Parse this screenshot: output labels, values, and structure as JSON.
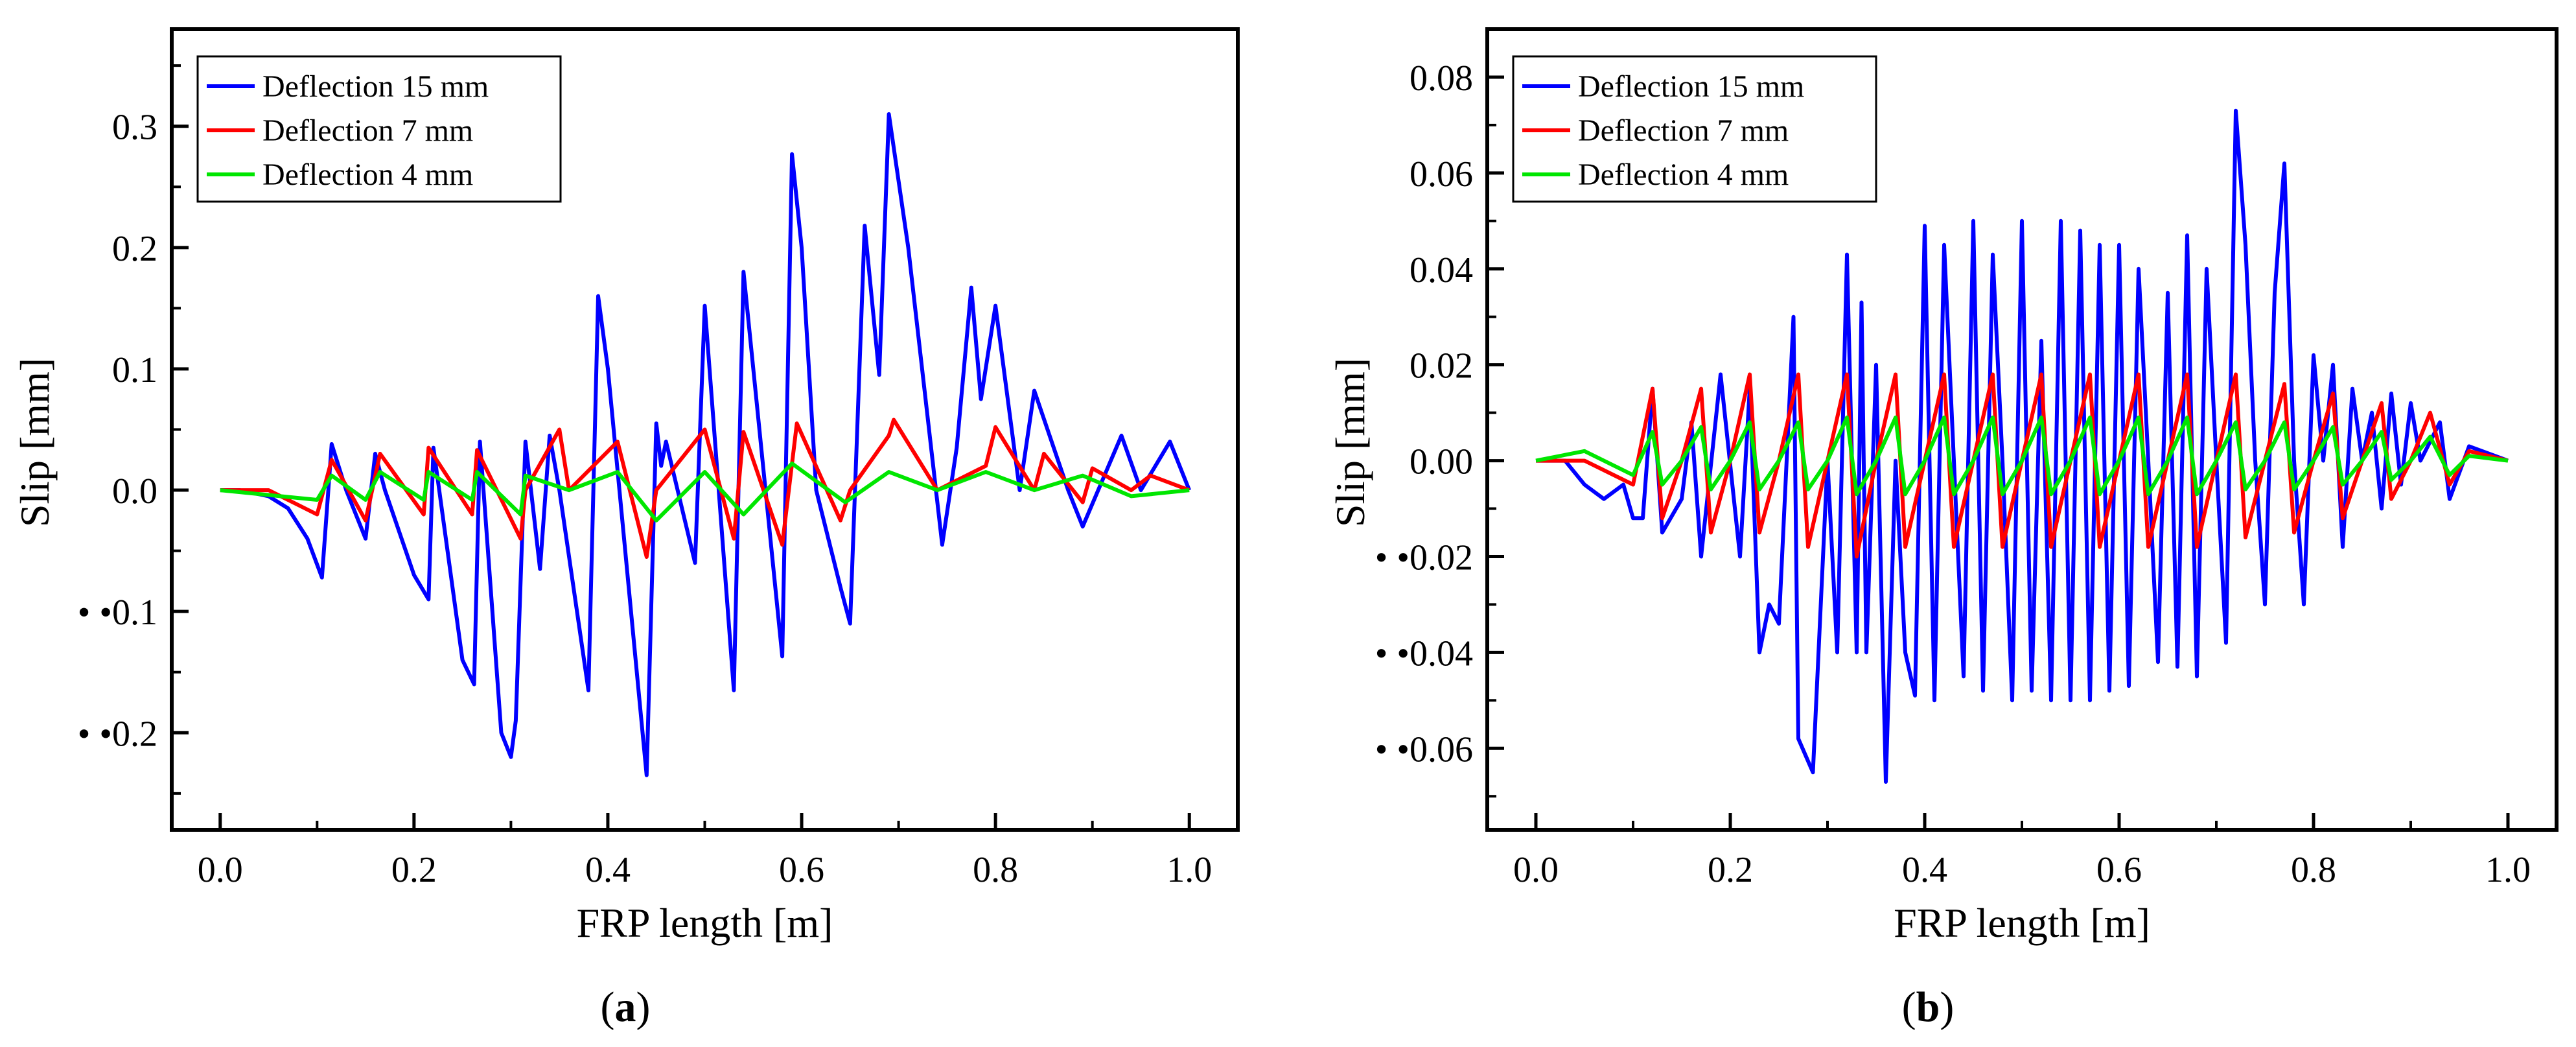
{
  "figure_labels": [
    {
      "open": "(",
      "letter": "a",
      "close": ")"
    },
    {
      "open": "(",
      "letter": "b",
      "close": ")"
    }
  ],
  "colors": {
    "Deflection 15 mm": "#0000ff",
    "Deflection 7 mm": "#ff0000",
    "Deflection 4 mm": "#00e600"
  },
  "chart_data": [
    {
      "type": "line",
      "xlabel": "FRP length [m]",
      "ylabel": "Slip [mm]",
      "xlim": [
        -0.05,
        1.05
      ],
      "ylim": [
        -0.28,
        0.38
      ],
      "xticks": [
        0.0,
        0.2,
        0.4,
        0.6,
        0.8,
        1.0
      ],
      "xtick_labels": [
        "0.0",
        "0.2",
        "0.4",
        "0.6",
        "0.8",
        "1.0"
      ],
      "yticks": [
        0.3,
        0.2,
        0.1,
        0.0,
        -0.1,
        -0.2
      ],
      "ytick_labels": [
        "0.3",
        "0.2",
        "0.1",
        "0.0",
        "• •0.1",
        "• •0.2"
      ],
      "grid": false,
      "legend_position": "top-left",
      "series": [
        {
          "name": "Deflection 15 mm",
          "color": "#0000ff",
          "x": [
            0.0,
            0.02,
            0.05,
            0.07,
            0.09,
            0.105,
            0.115,
            0.13,
            0.15,
            0.16,
            0.17,
            0.2,
            0.215,
            0.22,
            0.25,
            0.262,
            0.268,
            0.29,
            0.3,
            0.305,
            0.315,
            0.33,
            0.34,
            0.35,
            0.38,
            0.39,
            0.4,
            0.44,
            0.45,
            0.455,
            0.46,
            0.49,
            0.5,
            0.53,
            0.54,
            0.58,
            0.59,
            0.6,
            0.615,
            0.64,
            0.65,
            0.665,
            0.68,
            0.69,
            0.71,
            0.745,
            0.76,
            0.775,
            0.785,
            0.8,
            0.825,
            0.84,
            0.875,
            0.89,
            0.93,
            0.95,
            0.98,
            1.0
          ],
          "y": [
            0.0,
            0.0,
            -0.005,
            -0.015,
            -0.04,
            -0.072,
            0.038,
            0.0,
            -0.04,
            0.03,
            0.0,
            -0.07,
            -0.09,
            0.035,
            -0.14,
            -0.16,
            0.04,
            -0.2,
            -0.22,
            -0.19,
            0.04,
            -0.065,
            0.045,
            0.0,
            -0.165,
            0.16,
            0.1,
            -0.235,
            0.055,
            0.02,
            0.04,
            -0.06,
            0.152,
            -0.165,
            0.18,
            -0.137,
            0.277,
            0.2,
            0.0,
            -0.08,
            -0.11,
            0.218,
            0.095,
            0.31,
            0.2,
            -0.045,
            0.035,
            0.167,
            0.075,
            0.152,
            0.0,
            0.082,
            0.0,
            -0.03,
            0.045,
            0.0,
            0.04,
            0.0
          ]
        },
        {
          "name": "Deflection 7 mm",
          "color": "#ff0000",
          "x": [
            0.0,
            0.05,
            0.1,
            0.115,
            0.15,
            0.165,
            0.21,
            0.215,
            0.26,
            0.265,
            0.31,
            0.315,
            0.35,
            0.36,
            0.41,
            0.44,
            0.45,
            0.5,
            0.53,
            0.54,
            0.58,
            0.595,
            0.64,
            0.65,
            0.69,
            0.695,
            0.74,
            0.79,
            0.8,
            0.84,
            0.85,
            0.89,
            0.9,
            0.94,
            0.96,
            1.0
          ],
          "y": [
            0.0,
            0.0,
            -0.02,
            0.025,
            -0.025,
            0.03,
            -0.02,
            0.035,
            -0.02,
            0.033,
            -0.04,
            0.0,
            0.05,
            0.0,
            0.04,
            -0.055,
            0.0,
            0.05,
            -0.04,
            0.048,
            -0.045,
            0.055,
            -0.025,
            0.0,
            0.045,
            0.058,
            0.0,
            0.02,
            0.052,
            0.0,
            0.03,
            -0.01,
            0.018,
            0.0,
            0.012,
            0.0
          ]
        },
        {
          "name": "Deflection 4 mm",
          "color": "#00e600",
          "x": [
            0.0,
            0.1,
            0.115,
            0.15,
            0.165,
            0.21,
            0.215,
            0.26,
            0.265,
            0.31,
            0.315,
            0.36,
            0.41,
            0.45,
            0.5,
            0.54,
            0.59,
            0.645,
            0.69,
            0.74,
            0.79,
            0.84,
            0.89,
            0.94,
            1.0
          ],
          "y": [
            0.0,
            -0.008,
            0.012,
            -0.008,
            0.015,
            -0.008,
            0.015,
            -0.008,
            0.015,
            -0.02,
            0.012,
            0.0,
            0.015,
            -0.025,
            0.015,
            -0.02,
            0.022,
            -0.01,
            0.015,
            0.0,
            0.015,
            0.0,
            0.012,
            -0.005,
            0.0
          ]
        }
      ]
    },
    {
      "type": "line",
      "xlabel": "FRP length [m]",
      "ylabel": "Slip [mm]",
      "xlim": [
        -0.05,
        1.05
      ],
      "ylim": [
        -0.077,
        0.09
      ],
      "xticks": [
        0.0,
        0.2,
        0.4,
        0.6,
        0.8,
        1.0
      ],
      "xtick_labels": [
        "0.0",
        "0.2",
        "0.4",
        "0.6",
        "0.8",
        "1.0"
      ],
      "yticks": [
        0.08,
        0.06,
        0.04,
        0.02,
        0.0,
        -0.02,
        -0.04,
        -0.06
      ],
      "ytick_labels": [
        "0.08",
        "0.06",
        "0.04",
        "0.02",
        "0.00",
        "• •0.02",
        "• •0.04",
        "• •0.06"
      ],
      "grid": false,
      "legend_position": "top-left",
      "series": [
        {
          "name": "Deflection 15 mm",
          "color": "#0000ff",
          "x": [
            0.0,
            0.03,
            0.05,
            0.07,
            0.09,
            0.1,
            0.11,
            0.12,
            0.13,
            0.15,
            0.16,
            0.17,
            0.19,
            0.21,
            0.22,
            0.23,
            0.24,
            0.25,
            0.265,
            0.27,
            0.285,
            0.3,
            0.31,
            0.32,
            0.33,
            0.335,
            0.34,
            0.35,
            0.36,
            0.37,
            0.38,
            0.39,
            0.4,
            0.41,
            0.42,
            0.43,
            0.44,
            0.45,
            0.46,
            0.47,
            0.48,
            0.49,
            0.5,
            0.51,
            0.52,
            0.53,
            0.54,
            0.55,
            0.56,
            0.57,
            0.58,
            0.59,
            0.6,
            0.61,
            0.62,
            0.63,
            0.64,
            0.65,
            0.66,
            0.67,
            0.68,
            0.69,
            0.7,
            0.71,
            0.72,
            0.73,
            0.74,
            0.75,
            0.76,
            0.77,
            0.78,
            0.79,
            0.8,
            0.81,
            0.82,
            0.83,
            0.84,
            0.85,
            0.86,
            0.87,
            0.88,
            0.89,
            0.9,
            0.91,
            0.93,
            0.94,
            0.96,
            1.0
          ],
          "y": [
            0.0,
            0.0,
            -0.005,
            -0.008,
            -0.005,
            -0.012,
            -0.012,
            0.015,
            -0.015,
            -0.008,
            0.008,
            -0.02,
            0.018,
            -0.02,
            0.015,
            -0.04,
            -0.03,
            -0.034,
            0.03,
            -0.058,
            -0.065,
            0.0,
            -0.04,
            0.043,
            -0.04,
            0.033,
            -0.04,
            0.02,
            -0.067,
            0.0,
            -0.04,
            -0.049,
            0.049,
            -0.05,
            0.045,
            0.0,
            -0.045,
            0.05,
            -0.048,
            0.043,
            0.0,
            -0.05,
            0.05,
            -0.048,
            0.025,
            -0.05,
            0.05,
            -0.05,
            0.048,
            -0.05,
            0.045,
            -0.048,
            0.045,
            -0.047,
            0.04,
            0.0,
            -0.042,
            0.035,
            -0.043,
            0.047,
            -0.045,
            0.04,
            0.0,
            -0.038,
            0.073,
            0.045,
            0.0,
            -0.03,
            0.035,
            0.062,
            0.0,
            -0.03,
            0.022,
            0.0,
            0.02,
            -0.018,
            0.015,
            0.0,
            0.01,
            -0.01,
            0.014,
            -0.005,
            0.012,
            0.0,
            0.008,
            -0.008,
            0.003,
            0.0
          ]
        },
        {
          "name": "Deflection 7 mm",
          "color": "#ff0000",
          "x": [
            0.0,
            0.05,
            0.1,
            0.12,
            0.13,
            0.15,
            0.17,
            0.18,
            0.2,
            0.22,
            0.23,
            0.25,
            0.27,
            0.28,
            0.3,
            0.32,
            0.33,
            0.35,
            0.37,
            0.38,
            0.4,
            0.42,
            0.43,
            0.45,
            0.47,
            0.48,
            0.5,
            0.52,
            0.53,
            0.55,
            0.57,
            0.58,
            0.6,
            0.62,
            0.63,
            0.65,
            0.67,
            0.68,
            0.7,
            0.72,
            0.73,
            0.75,
            0.77,
            0.78,
            0.8,
            0.82,
            0.83,
            0.85,
            0.87,
            0.88,
            0.9,
            0.92,
            0.94,
            0.96,
            1.0
          ],
          "y": [
            0.0,
            0.0,
            -0.005,
            0.015,
            -0.012,
            0.0,
            0.015,
            -0.015,
            0.0,
            0.018,
            -0.015,
            0.0,
            0.018,
            -0.018,
            0.0,
            0.018,
            -0.02,
            0.0,
            0.018,
            -0.018,
            0.0,
            0.018,
            -0.018,
            0.0,
            0.018,
            -0.018,
            0.0,
            0.018,
            -0.018,
            0.0,
            0.018,
            -0.018,
            0.0,
            0.018,
            -0.018,
            0.0,
            0.018,
            -0.018,
            0.0,
            0.018,
            -0.016,
            0.0,
            0.016,
            -0.015,
            0.0,
            0.014,
            -0.012,
            0.0,
            0.012,
            -0.008,
            0.0,
            0.01,
            -0.005,
            0.002,
            0.0
          ]
        },
        {
          "name": "Deflection 4 mm",
          "color": "#00e600",
          "x": [
            0.0,
            0.05,
            0.1,
            0.12,
            0.13,
            0.15,
            0.17,
            0.18,
            0.2,
            0.22,
            0.23,
            0.25,
            0.27,
            0.28,
            0.3,
            0.32,
            0.33,
            0.35,
            0.37,
            0.38,
            0.4,
            0.42,
            0.43,
            0.45,
            0.47,
            0.48,
            0.5,
            0.52,
            0.53,
            0.55,
            0.57,
            0.58,
            0.6,
            0.62,
            0.63,
            0.65,
            0.67,
            0.68,
            0.7,
            0.72,
            0.73,
            0.75,
            0.77,
            0.78,
            0.8,
            0.82,
            0.83,
            0.85,
            0.87,
            0.88,
            0.9,
            0.92,
            0.94,
            0.96,
            1.0
          ],
          "y": [
            0.0,
            0.002,
            -0.003,
            0.006,
            -0.005,
            0.0,
            0.007,
            -0.006,
            0.0,
            0.008,
            -0.006,
            0.0,
            0.008,
            -0.006,
            0.0,
            0.009,
            -0.007,
            0.0,
            0.009,
            -0.007,
            0.0,
            0.009,
            -0.007,
            0.0,
            0.009,
            -0.007,
            0.0,
            0.009,
            -0.007,
            0.0,
            0.009,
            -0.007,
            0.0,
            0.009,
            -0.007,
            0.0,
            0.009,
            -0.007,
            0.0,
            0.008,
            -0.006,
            0.0,
            0.008,
            -0.006,
            0.0,
            0.007,
            -0.005,
            0.0,
            0.006,
            -0.004,
            0.0,
            0.005,
            -0.003,
            0.001,
            0.0
          ]
        }
      ]
    }
  ]
}
